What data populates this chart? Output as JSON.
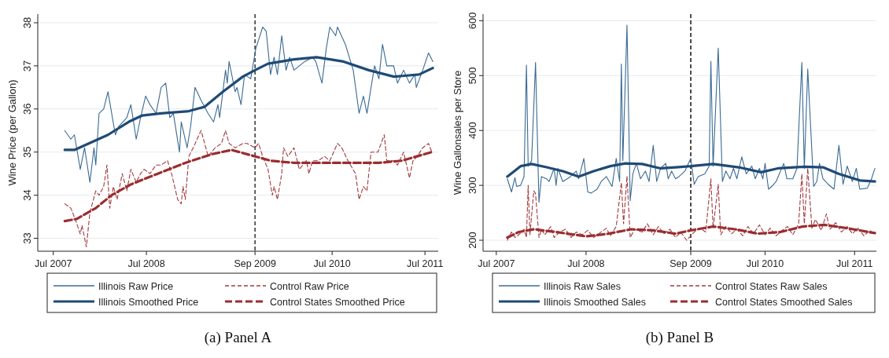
{
  "chart_data": [
    {
      "type": "line",
      "ylabel": "Wine Price (per Gallon)",
      "annotations": [
        "(a) Panel A"
      ],
      "grid": "y",
      "legend": "bottom",
      "xlim": [
        "2007-05-01",
        "2011-08-22"
      ],
      "xticks": [
        {
          "value": "2007-07-01",
          "label": "Jul 2007"
        },
        {
          "value": "2008-07-01",
          "label": "Jul 2008"
        },
        {
          "value": "2009-09-01",
          "label": "Sep 2009"
        },
        {
          "value": "2010-07-01",
          "label": "Jul 2010"
        },
        {
          "value": "2011-07-01",
          "label": "Jul 2011"
        }
      ],
      "ylim": [
        32.7,
        38.2
      ],
      "yticks": [
        33,
        34,
        35,
        36,
        37,
        38
      ],
      "ref_lines": [
        {
          "axis": "x",
          "value": "2009-09-01",
          "color": "#333333",
          "line_style": "dashed"
        }
      ],
      "series": [
        {
          "name": "Illinois Raw Price",
          "color": "#3a6a94",
          "line_style": "solid",
          "x": [
            "2007-08-15",
            "2007-09-08",
            "2007-09-22",
            "2007-10-15",
            "2007-11-01",
            "2007-11-22",
            "2007-12-08",
            "2007-12-15",
            "2007-12-28",
            "2008-01-15",
            "2008-02-01",
            "2008-03-01",
            "2008-03-15",
            "2008-04-15",
            "2008-05-01",
            "2008-05-22",
            "2008-06-08",
            "2008-06-28",
            "2008-07-15",
            "2008-08-08",
            "2008-08-28",
            "2008-09-15",
            "2008-10-01",
            "2008-10-15",
            "2008-11-08",
            "2008-11-15",
            "2008-12-08",
            "2008-12-22",
            "2009-01-08",
            "2009-02-01",
            "2009-02-28",
            "2009-03-22",
            "2009-04-08",
            "2009-04-15",
            "2009-05-08",
            "2009-05-15",
            "2009-05-22",
            "2009-06-15",
            "2009-06-22",
            "2009-07-08",
            "2009-07-22",
            "2009-08-15",
            "2009-09-04",
            "2009-10-01",
            "2009-10-15",
            "2009-11-01",
            "2009-11-15",
            "2009-11-28",
            "2009-12-15",
            "2010-01-01",
            "2010-01-15",
            "2010-02-01",
            "2010-03-15",
            "2010-04-15",
            "2010-04-28",
            "2010-05-22",
            "2010-06-08",
            "2010-06-22",
            "2010-07-15",
            "2010-07-22",
            "2010-08-22",
            "2010-09-22",
            "2010-10-15",
            "2010-11-01",
            "2010-11-15",
            "2010-12-01",
            "2010-12-15",
            "2011-01-01",
            "2011-01-15",
            "2011-02-01",
            "2011-02-28",
            "2011-03-15",
            "2011-04-08",
            "2011-05-01",
            "2011-05-22",
            "2011-05-28",
            "2011-06-22",
            "2011-07-15",
            "2011-08-01"
          ],
          "values": [
            35.5,
            35.3,
            35.4,
            34.6,
            35.1,
            34.3,
            35.1,
            34.7,
            35.9,
            36.0,
            36.4,
            35.4,
            35.6,
            35.8,
            36.1,
            35.3,
            35.8,
            36.3,
            36.1,
            35.9,
            36.5,
            36.6,
            35.8,
            35.9,
            35.0,
            35.7,
            35.1,
            35.6,
            36.5,
            36.2,
            35.9,
            35.7,
            36.1,
            35.8,
            36.9,
            36.6,
            37.1,
            36.4,
            36.5,
            36.1,
            36.8,
            36.7,
            37.4,
            37.9,
            37.8,
            36.8,
            37.2,
            36.8,
            37.7,
            36.9,
            37.2,
            36.9,
            37.1,
            37.2,
            37.1,
            36.6,
            37.4,
            37.9,
            37.7,
            37.9,
            37.5,
            36.9,
            35.9,
            36.3,
            35.9,
            36.5,
            37.0,
            36.7,
            37.5,
            37.0,
            37.0,
            36.6,
            36.9,
            36.6,
            36.8,
            36.5,
            36.9,
            37.3,
            37.1
          ]
        },
        {
          "name": "Control Raw Price",
          "color": "#a23a3e",
          "line_style": "dashed",
          "x": [
            "2007-08-15",
            "2007-09-08",
            "2007-09-28",
            "2007-10-15",
            "2007-10-22",
            "2007-11-08",
            "2007-11-22",
            "2007-12-15",
            "2007-12-28",
            "2008-01-15",
            "2008-01-28",
            "2008-02-08",
            "2008-02-22",
            "2008-03-08",
            "2008-03-28",
            "2008-04-15",
            "2008-05-01",
            "2008-05-22",
            "2008-06-08",
            "2008-06-22",
            "2008-07-15",
            "2008-08-08",
            "2008-08-28",
            "2008-09-22",
            "2008-10-08",
            "2008-11-01",
            "2008-11-15",
            "2008-11-22",
            "2008-12-01",
            "2008-12-15",
            "2009-01-01",
            "2009-02-01",
            "2009-02-15",
            "2009-03-01",
            "2009-03-28",
            "2009-04-22",
            "2009-05-08",
            "2009-05-22",
            "2009-06-15",
            "2009-07-15",
            "2009-08-01",
            "2009-09-01",
            "2009-09-15",
            "2009-10-01",
            "2009-10-22",
            "2009-11-08",
            "2009-11-15",
            "2009-11-28",
            "2009-12-15",
            "2009-12-22",
            "2010-01-08",
            "2010-02-01",
            "2010-02-22",
            "2010-03-22",
            "2010-04-01",
            "2010-04-15",
            "2010-05-08",
            "2010-06-01",
            "2010-06-22",
            "2010-07-22",
            "2010-08-08",
            "2010-09-01",
            "2010-10-01",
            "2010-10-15",
            "2010-11-01",
            "2010-11-15",
            "2010-12-01",
            "2010-12-28",
            "2011-01-22",
            "2011-02-01",
            "2011-02-28",
            "2011-03-15",
            "2011-04-08",
            "2011-05-01",
            "2011-05-15",
            "2011-06-01",
            "2011-06-22",
            "2011-07-15",
            "2011-07-28"
          ],
          "values": [
            33.8,
            33.7,
            33.4,
            33.1,
            33.3,
            32.8,
            33.6,
            34.1,
            34.0,
            34.2,
            34.7,
            33.7,
            34.2,
            33.9,
            34.5,
            34.1,
            34.6,
            34.3,
            34.5,
            34.6,
            34.5,
            34.7,
            34.7,
            34.8,
            34.5,
            33.9,
            33.8,
            34.2,
            33.9,
            34.9,
            35.1,
            35.5,
            35.2,
            34.9,
            35.1,
            35.2,
            35.5,
            35.2,
            35.1,
            35.2,
            35.2,
            35.1,
            35.2,
            34.9,
            34.6,
            34.0,
            34.2,
            33.9,
            34.5,
            35.1,
            34.9,
            35.1,
            34.6,
            34.8,
            34.5,
            34.8,
            34.8,
            34.9,
            34.8,
            35.2,
            35.1,
            34.8,
            34.5,
            33.9,
            34.2,
            34.1,
            35.0,
            35.0,
            35.4,
            34.8,
            34.8,
            34.7,
            35.0,
            34.4,
            34.8,
            34.9,
            35.1,
            35.2,
            35.0
          ]
        },
        {
          "name": "Illinois Smoothed Price",
          "color": "#1f4a75",
          "line_style": "solid",
          "x": [
            "2007-08-15",
            "2007-09-22",
            "2008-02-01",
            "2008-04-22",
            "2008-06-15",
            "2008-08-28",
            "2008-12-15",
            "2009-02-15",
            "2009-04-28",
            "2009-07-15",
            "2009-09-01",
            "2009-10-22",
            "2010-02-01",
            "2010-05-01",
            "2010-08-15",
            "2010-11-22",
            "2011-03-01",
            "2011-06-08",
            "2011-08-01"
          ],
          "values": [
            35.05,
            35.05,
            35.4,
            35.7,
            35.85,
            35.9,
            35.95,
            36.05,
            36.4,
            36.75,
            36.9,
            37.05,
            37.15,
            37.2,
            37.1,
            36.9,
            36.75,
            36.8,
            36.95
          ]
        },
        {
          "name": "Control States Smoothed Price",
          "color": "#9b2d30",
          "line_style": "dashed",
          "x": [
            "2007-08-15",
            "2007-10-01",
            "2007-12-15",
            "2008-02-15",
            "2008-05-01",
            "2008-08-15",
            "2008-12-01",
            "2009-03-15",
            "2009-06-01",
            "2009-09-01",
            "2009-11-01",
            "2010-02-01",
            "2010-07-01",
            "2011-01-01",
            "2011-04-01",
            "2011-07-28"
          ],
          "values": [
            33.4,
            33.45,
            33.7,
            34.0,
            34.25,
            34.5,
            34.75,
            34.95,
            35.05,
            34.9,
            34.8,
            34.75,
            34.75,
            34.75,
            34.8,
            35.0
          ]
        }
      ]
    },
    {
      "type": "line",
      "ylabel": "Wine Gallonsales per Store",
      "annotations": [
        "(b) Panel B"
      ],
      "grid": "y",
      "legend": "bottom",
      "xlim": [
        "2007-05-08",
        "2011-09-28"
      ],
      "xticks": [
        {
          "value": "2007-07-01",
          "label": "Jul 2007"
        },
        {
          "value": "2008-07-01",
          "label": "Jul 2008"
        },
        {
          "value": "2009-09-01",
          "label": "Sep 2009"
        },
        {
          "value": "2010-07-01",
          "label": "Jul 2010"
        },
        {
          "value": "2011-07-01",
          "label": "Jul 2011"
        }
      ],
      "ylim": [
        180,
        612
      ],
      "yticks": [
        200,
        300,
        400,
        500,
        600
      ],
      "ref_lines": [
        {
          "axis": "x",
          "value": "2009-09-01",
          "color": "#111111",
          "line_style": "dashed"
        }
      ],
      "series": [
        {
          "name": "Illinois Raw Sales",
          "color": "#3a6a94",
          "line_style": "solid",
          "x": [
            "2007-08-15",
            "2007-09-01",
            "2007-09-15",
            "2007-09-22",
            "2007-10-08",
            "2007-10-22",
            "2007-11-01",
            "2007-11-08",
            "2007-11-22",
            "2007-12-08",
            "2007-12-22",
            "2008-01-01",
            "2008-01-22",
            "2008-02-01",
            "2008-02-22",
            "2008-03-01",
            "2008-03-08",
            "2008-03-28",
            "2008-04-15",
            "2008-04-28",
            "2008-05-22",
            "2008-06-01",
            "2008-06-22",
            "2008-07-08",
            "2008-07-22",
            "2008-08-15",
            "2008-09-01",
            "2008-09-22",
            "2008-10-15",
            "2008-11-01",
            "2008-11-15",
            "2008-11-22",
            "2008-11-28",
            "2008-12-15",
            "2008-12-28",
            "2009-01-08",
            "2009-01-22",
            "2009-02-08",
            "2009-02-28",
            "2009-03-15",
            "2009-04-01",
            "2009-04-15",
            "2009-05-01",
            "2009-05-22",
            "2009-06-01",
            "2009-06-15",
            "2009-07-01",
            "2009-07-15",
            "2009-08-08",
            "2009-09-01",
            "2009-09-15",
            "2009-10-01",
            "2009-10-28",
            "2009-11-15",
            "2009-11-22",
            "2009-12-01",
            "2009-12-22",
            "2010-01-08",
            "2010-01-22",
            "2010-02-08",
            "2010-02-22",
            "2010-03-08",
            "2010-03-28",
            "2010-04-15",
            "2010-05-08",
            "2010-05-22",
            "2010-06-08",
            "2010-06-22",
            "2010-07-01",
            "2010-07-15",
            "2010-07-28",
            "2010-08-15",
            "2010-09-15",
            "2010-09-28",
            "2010-10-22",
            "2010-11-08",
            "2010-11-28",
            "2010-12-08",
            "2010-12-22",
            "2011-01-15",
            "2011-01-28",
            "2011-02-08",
            "2011-02-22",
            "2011-03-15",
            "2011-04-08",
            "2011-04-28",
            "2011-05-15",
            "2011-06-01",
            "2011-06-22",
            "2011-07-08",
            "2011-07-22",
            "2011-08-22",
            "2011-09-08",
            "2011-09-22"
          ],
          "values": [
            312,
            288,
            314,
            298,
            300,
            316,
            519,
            335,
            345,
            524,
            269,
            316,
            312,
            307,
            331,
            300,
            331,
            307,
            312,
            316,
            326,
            312,
            349,
            288,
            286,
            293,
            307,
            316,
            298,
            349,
            307,
            521,
            345,
            592,
            272,
            321,
            340,
            312,
            326,
            307,
            373,
            307,
            331,
            340,
            312,
            326,
            312,
            316,
            326,
            349,
            302,
            316,
            321,
            335,
            526,
            335,
            550,
            307,
            326,
            312,
            331,
            312,
            352,
            321,
            335,
            312,
            331,
            312,
            340,
            293,
            298,
            307,
            340,
            312,
            312,
            331,
            524,
            331,
            512,
            298,
            307,
            340,
            312,
            302,
            293,
            373,
            302,
            335,
            307,
            331,
            293,
            295,
            312,
            331
          ]
        },
        {
          "name": "Control States Raw Sales",
          "color": "#a23a3e",
          "line_style": "dashed",
          "x": [
            "2007-08-15",
            "2007-09-01",
            "2007-09-15",
            "2007-10-01",
            "2007-10-22",
            "2007-11-01",
            "2007-11-08",
            "2007-11-15",
            "2007-12-01",
            "2007-12-08",
            "2007-12-22",
            "2008-01-01",
            "2008-01-15",
            "2008-02-08",
            "2008-02-22",
            "2008-03-15",
            "2008-04-08",
            "2008-05-01",
            "2008-05-22",
            "2008-06-15",
            "2008-07-08",
            "2008-08-01",
            "2008-08-22",
            "2008-09-22",
            "2008-10-08",
            "2008-11-01",
            "2008-11-22",
            "2008-12-01",
            "2008-12-15",
            "2008-12-28",
            "2009-01-15",
            "2009-02-15",
            "2009-03-08",
            "2009-04-01",
            "2009-04-22",
            "2009-05-15",
            "2009-06-08",
            "2009-07-01",
            "2009-07-22",
            "2009-08-15",
            "2009-09-01",
            "2009-09-15",
            "2009-10-08",
            "2009-11-01",
            "2009-11-22",
            "2009-12-01",
            "2009-12-22",
            "2010-01-01",
            "2010-01-22",
            "2010-02-15",
            "2010-03-08",
            "2010-04-01",
            "2010-04-22",
            "2010-05-15",
            "2010-06-08",
            "2010-07-01",
            "2010-07-22",
            "2010-08-15",
            "2010-09-08",
            "2010-10-01",
            "2010-10-22",
            "2010-11-15",
            "2010-11-28",
            "2010-12-08",
            "2010-12-22",
            "2011-01-08",
            "2011-01-22",
            "2011-02-15",
            "2011-03-08",
            "2011-03-22",
            "2011-04-15",
            "2011-05-08",
            "2011-06-01",
            "2011-06-22",
            "2011-07-15",
            "2011-08-08",
            "2011-09-01",
            "2011-09-22"
          ],
          "values": [
            200,
            215,
            205,
            210,
            220,
            205,
            300,
            210,
            290,
            285,
            205,
            220,
            210,
            225,
            205,
            215,
            220,
            205,
            215,
            210,
            218,
            205,
            212,
            222,
            208,
            225,
            305,
            230,
            317,
            205,
            220,
            215,
            230,
            210,
            225,
            212,
            220,
            205,
            215,
            200,
            208,
            215,
            222,
            215,
            312,
            222,
            302,
            210,
            225,
            212,
            220,
            208,
            225,
            212,
            228,
            210,
            222,
            208,
            218,
            225,
            210,
            230,
            321,
            230,
            331,
            222,
            238,
            218,
            248,
            220,
            232,
            215,
            225,
            212,
            222,
            208,
            218,
            210
          ]
        },
        {
          "name": "Illinois Smoothed Sales",
          "color": "#1f4a75",
          "line_style": "solid",
          "x": [
            "2007-08-15",
            "2007-10-08",
            "2007-11-22",
            "2008-01-22",
            "2008-03-28",
            "2008-06-01",
            "2008-08-01",
            "2008-10-08",
            "2008-12-08",
            "2009-02-15",
            "2009-05-01",
            "2009-07-01",
            "2009-09-01",
            "2009-12-01",
            "2010-03-15",
            "2010-06-15",
            "2010-08-22",
            "2010-12-08",
            "2011-02-22",
            "2011-04-28",
            "2011-07-22",
            "2011-09-22"
          ],
          "values": [
            316,
            335,
            339,
            333,
            326,
            316,
            326,
            335,
            340,
            339,
            331,
            333,
            335,
            339,
            333,
            324,
            331,
            334,
            333,
            321,
            309,
            307
          ]
        },
        {
          "name": "Control States Smoothed Sales",
          "color": "#9b2d30",
          "line_style": "dashed",
          "x": [
            "2007-08-15",
            "2007-10-01",
            "2007-12-01",
            "2008-03-01",
            "2008-07-01",
            "2008-10-01",
            "2009-01-01",
            "2009-04-01",
            "2009-07-01",
            "2009-09-01",
            "2009-12-01",
            "2010-03-01",
            "2010-06-01",
            "2010-09-01",
            "2010-12-01",
            "2011-03-01",
            "2011-06-01",
            "2011-09-22"
          ],
          "values": [
            205,
            215,
            220,
            215,
            207,
            212,
            220,
            218,
            212,
            218,
            225,
            220,
            212,
            215,
            225,
            228,
            222,
            213
          ]
        }
      ]
    }
  ]
}
